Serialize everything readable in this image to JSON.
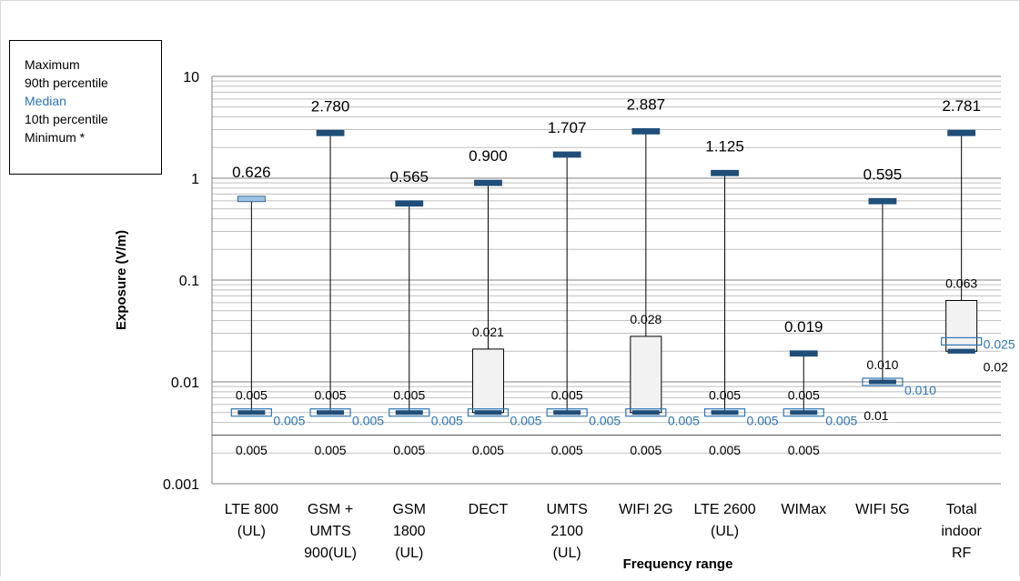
{
  "legend": {
    "items": [
      "Maximum",
      "90th percentile",
      "Median",
      "10th percentile",
      "Minimum *"
    ],
    "median_color": "#2e75b6"
  },
  "chart_data": {
    "type": "box",
    "title": "",
    "xlabel": "Frequency range",
    "ylabel": "Exposure (V/m)",
    "yscale": "log",
    "ylim": [
      0.001,
      10
    ],
    "yticks": [
      "0.001",
      "0.01",
      "0.1",
      "1",
      "10"
    ],
    "grid": "horizontal minor",
    "legend_position": "top-left",
    "colors": {
      "marker": "#1f4e79",
      "marker_light": "#9dc3e6",
      "median": "#2e75b6",
      "box_fill": "#f2f2f2"
    },
    "categories": [
      {
        "label": [
          "LTE 800",
          "(UL)"
        ],
        "max": 0.626,
        "p90": 0.005,
        "median": 0.005,
        "p10": 0.005,
        "min": null,
        "labels": {
          "max": "0.626",
          "p90": "0.005",
          "median": "0.005",
          "p10": "0.005"
        }
      },
      {
        "label": [
          "GSM +",
          "UMTS",
          "900(UL)"
        ],
        "max": 2.78,
        "p90": 0.005,
        "median": 0.005,
        "p10": 0.005,
        "min": null,
        "labels": {
          "max": "2.780",
          "p90": "0.005",
          "median": "0.005",
          "p10": "0.005"
        }
      },
      {
        "label": [
          "GSM",
          "1800",
          "(UL)"
        ],
        "max": 0.565,
        "p90": 0.005,
        "median": 0.005,
        "p10": 0.005,
        "min": null,
        "labels": {
          "max": "0.565",
          "p90": "0.005",
          "median": "0.005",
          "p10": "0.005"
        }
      },
      {
        "label": [
          "DECT"
        ],
        "max": 0.9,
        "p90": 0.021,
        "median": 0.005,
        "p10": 0.005,
        "min": null,
        "labels": {
          "max": "0.900",
          "p90": "0.021",
          "median": "0.005",
          "p10": "0.005"
        }
      },
      {
        "label": [
          "UMTS",
          "2100",
          "(UL)"
        ],
        "max": 1.707,
        "p90": 0.005,
        "median": 0.005,
        "p10": 0.005,
        "min": null,
        "labels": {
          "max": "1.707",
          "p90": "0.005",
          "median": "0.005",
          "p10": "0.005"
        }
      },
      {
        "label": [
          "WIFI 2G"
        ],
        "max": 2.887,
        "p90": 0.028,
        "median": 0.005,
        "p10": 0.005,
        "min": null,
        "labels": {
          "max": "2.887",
          "p90": "0.028",
          "median": "0.005",
          "p10": "0.005"
        }
      },
      {
        "label": [
          "LTE 2600",
          "(UL)"
        ],
        "max": 1.125,
        "p90": 0.005,
        "median": 0.005,
        "p10": 0.005,
        "min": null,
        "labels": {
          "max": "1.125",
          "p90": "0.005",
          "median": "0.005",
          "p10": "0.005"
        }
      },
      {
        "label": [
          "WIMax"
        ],
        "max": 0.019,
        "p90": 0.005,
        "median": 0.005,
        "p10": 0.005,
        "min": null,
        "labels": {
          "max": "0.019",
          "p90": "0.005",
          "median": "0.005",
          "p10": "0.005"
        }
      },
      {
        "label": [
          "WIFI 5G"
        ],
        "max": 0.595,
        "p90": 0.01,
        "median": 0.01,
        "p10": 0.01,
        "min": null,
        "labels": {
          "max": "0.595",
          "p90": "0.010",
          "median": "0.010",
          "p10": "0.01"
        }
      },
      {
        "label": [
          "Total",
          "indoor",
          "RF"
        ],
        "max": 2.781,
        "p90": 0.063,
        "median": 0.025,
        "p10": 0.02,
        "min": 0.02,
        "labels": {
          "max": "2.781",
          "p90": "0.063",
          "median": "0.025",
          "p10": "0.02"
        }
      }
    ]
  }
}
